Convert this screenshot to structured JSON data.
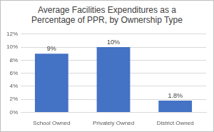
{
  "chart_data": {
    "type": "bar",
    "title": "Average Facilities Expenditures as a Percentage of PPR, by Ownership Type",
    "categories": [
      "School Owned",
      "Privately Owned",
      "District Owned"
    ],
    "values": [
      9,
      10,
      1.8
    ],
    "value_labels": [
      "9%",
      "10%",
      "1.8%"
    ],
    "data_labels": true,
    "color": "#4472c4",
    "ylim": [
      0,
      12
    ],
    "yticks": [
      {
        "value": 0,
        "label": "0%"
      },
      {
        "value": 2,
        "label": "2%"
      },
      {
        "value": 4,
        "label": "4%"
      },
      {
        "value": 6,
        "label": "6%"
      },
      {
        "value": 8,
        "label": "8%"
      },
      {
        "value": 10,
        "label": "10%"
      },
      {
        "value": 12,
        "label": "12%"
      }
    ],
    "grid": true
  }
}
